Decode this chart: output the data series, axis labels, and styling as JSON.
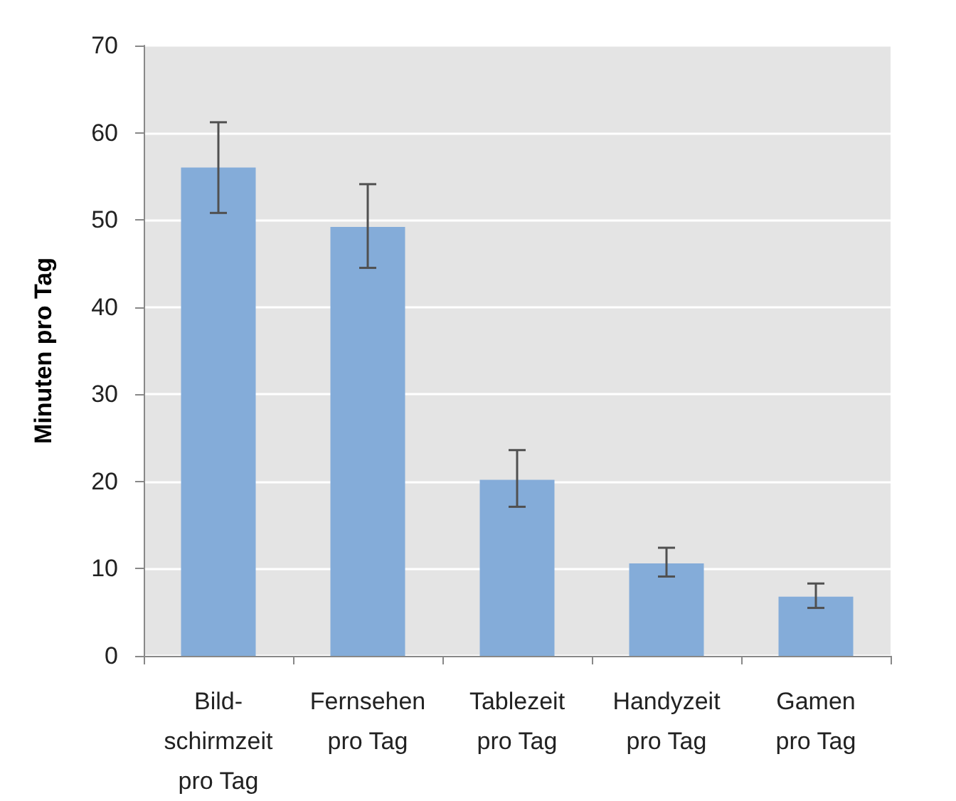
{
  "chart_data": {
    "type": "bar",
    "ylabel": "Minuten pro Tag",
    "categories": [
      "Bild-\nschirmzeit\npro Tag",
      "Fernsehen\npro Tag",
      "Tablezeit\npro Tag",
      "Handyzeit\npro Tag",
      "Gamen\npro Tag"
    ],
    "values": [
      56.0,
      49.2,
      20.2,
      10.6,
      6.8
    ],
    "errors": [
      [
        50.8,
        61.2
      ],
      [
        44.5,
        54.1
      ],
      [
        17.1,
        23.6
      ],
      [
        9.1,
        12.4
      ],
      [
        5.5,
        8.3
      ]
    ],
    "color": "#84acd9",
    "ylim": [
      0,
      70
    ],
    "yticks": [
      0,
      10,
      20,
      30,
      40,
      50,
      60,
      70
    ],
    "grid": "y"
  }
}
